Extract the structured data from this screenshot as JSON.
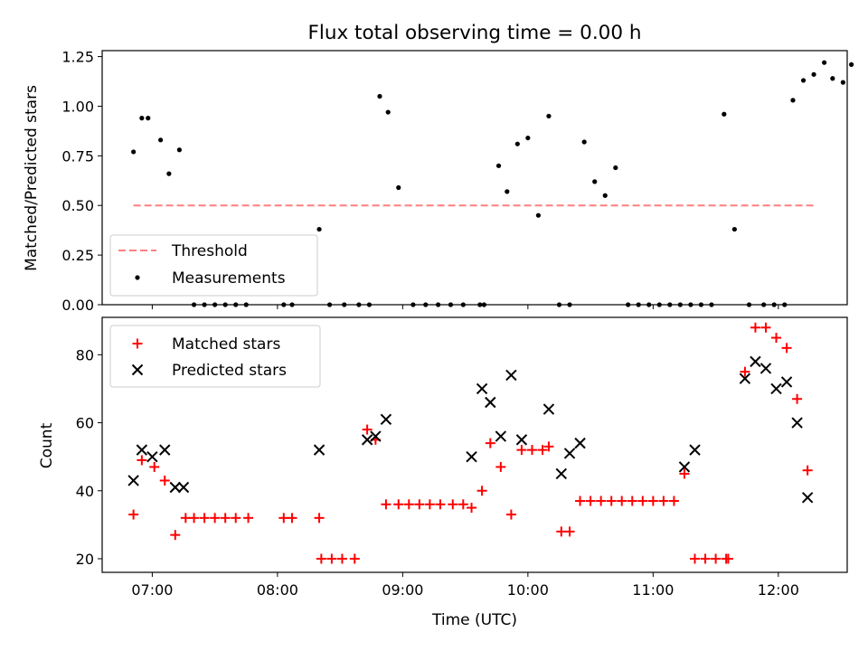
{
  "chart_data": [
    {
      "type": "scatter",
      "title": "Flux total observing time = 0.00 h",
      "ylabel": "Matched/Predicted stars",
      "xlabel": "",
      "xlim": [
        "06:36",
        "12:33"
      ],
      "ylim": [
        0,
        1.28
      ],
      "xticks": [
        "07:00",
        "08:00",
        "09:00",
        "10:00",
        "11:00",
        "12:00"
      ],
      "yticks": [
        "0.00",
        "0.25",
        "0.50",
        "0.75",
        "1.00",
        "1.25"
      ],
      "legend": [
        "Threshold",
        "Measurements"
      ],
      "legend_position": "lower-left",
      "colors": {
        "threshold": "#ff7f7f",
        "measurements": "#000000"
      },
      "threshold": {
        "name": "Threshold",
        "x": [
          "06:51",
          "12:18"
        ],
        "value": 0.5
      },
      "series": [
        {
          "name": "Measurements",
          "points": [
            [
              "06:51",
              0.77
            ],
            [
              "06:55",
              0.94
            ],
            [
              "06:58",
              0.94
            ],
            [
              "07:04",
              0.83
            ],
            [
              "07:08",
              0.66
            ],
            [
              "07:13",
              0.78
            ],
            [
              "07:20",
              0.0
            ],
            [
              "07:25",
              0.0
            ],
            [
              "07:30",
              0.0
            ],
            [
              "07:35",
              0.0
            ],
            [
              "07:40",
              0.0
            ],
            [
              "07:45",
              0.0
            ],
            [
              "08:03",
              0.0
            ],
            [
              "08:07",
              0.0
            ],
            [
              "08:20",
              0.38
            ],
            [
              "08:25",
              0.0
            ],
            [
              "08:32",
              0.0
            ],
            [
              "08:39",
              0.0
            ],
            [
              "08:44",
              0.0
            ],
            [
              "08:49",
              1.05
            ],
            [
              "08:53",
              0.97
            ],
            [
              "08:58",
              0.59
            ],
            [
              "09:05",
              0.0
            ],
            [
              "09:11",
              0.0
            ],
            [
              "09:17",
              0.0
            ],
            [
              "09:23",
              0.0
            ],
            [
              "09:29",
              0.0
            ],
            [
              "09:37",
              0.0
            ],
            [
              "09:39",
              0.0
            ],
            [
              "09:46",
              0.7
            ],
            [
              "09:50",
              0.57
            ],
            [
              "09:55",
              0.81
            ],
            [
              "10:00",
              0.84
            ],
            [
              "10:05",
              0.45
            ],
            [
              "10:10",
              0.95
            ],
            [
              "10:15",
              0.0
            ],
            [
              "10:20",
              0.0
            ],
            [
              "10:27",
              0.82
            ],
            [
              "10:32",
              0.62
            ],
            [
              "10:37",
              0.55
            ],
            [
              "10:42",
              0.69
            ],
            [
              "10:48",
              0.0
            ],
            [
              "10:53",
              0.0
            ],
            [
              "10:58",
              0.0
            ],
            [
              "11:03",
              0.0
            ],
            [
              "11:08",
              0.0
            ],
            [
              "11:13",
              0.0
            ],
            [
              "11:18",
              0.0
            ],
            [
              "11:23",
              0.0
            ],
            [
              "11:28",
              0.0
            ],
            [
              "11:34",
              0.96
            ],
            [
              "11:39",
              0.38
            ],
            [
              "11:46",
              0.0
            ],
            [
              "11:53",
              0.0
            ],
            [
              "11:58",
              0.0
            ],
            [
              "12:03",
              0.0
            ],
            [
              "12:07",
              1.03
            ],
            [
              "12:12",
              1.13
            ],
            [
              "12:17",
              1.16
            ],
            [
              "12:22",
              1.22
            ],
            [
              "12:26",
              1.14
            ],
            [
              "12:31",
              1.12
            ],
            [
              "12:35",
              1.21
            ]
          ]
        }
      ]
    },
    {
      "type": "scatter",
      "title": "",
      "xlabel": "Time (UTC)",
      "ylabel": "Count",
      "xlim": [
        "06:36",
        "12:33"
      ],
      "ylim": [
        16,
        91
      ],
      "xticks": [
        "07:00",
        "08:00",
        "09:00",
        "10:00",
        "11:00",
        "12:00"
      ],
      "yticks": [
        "20",
        "40",
        "60",
        "80"
      ],
      "legend": [
        "Matched stars",
        "Predicted stars"
      ],
      "legend_position": "top-left",
      "colors": {
        "matched": "#ff0000",
        "predicted": "#000000"
      },
      "series": [
        {
          "name": "Matched stars",
          "points": [
            [
              "06:51",
              33
            ],
            [
              "06:55",
              49
            ],
            [
              "07:01",
              47
            ],
            [
              "07:06",
              43
            ],
            [
              "07:11",
              27
            ],
            [
              "07:16",
              32
            ],
            [
              "07:20",
              32
            ],
            [
              "07:25",
              32
            ],
            [
              "07:30",
              32
            ],
            [
              "07:35",
              32
            ],
            [
              "07:40",
              32
            ],
            [
              "07:46",
              32
            ],
            [
              "08:03",
              32
            ],
            [
              "08:07",
              32
            ],
            [
              "08:20",
              32
            ],
            [
              "08:21",
              20
            ],
            [
              "08:26",
              20
            ],
            [
              "08:31",
              20
            ],
            [
              "08:37",
              20
            ],
            [
              "08:43",
              58
            ],
            [
              "08:47",
              55
            ],
            [
              "08:52",
              36
            ],
            [
              "08:58",
              36
            ],
            [
              "09:03",
              36
            ],
            [
              "09:08",
              36
            ],
            [
              "09:13",
              36
            ],
            [
              "09:18",
              36
            ],
            [
              "09:24",
              36
            ],
            [
              "09:29",
              36
            ],
            [
              "09:33",
              35
            ],
            [
              "09:38",
              40
            ],
            [
              "09:42",
              54
            ],
            [
              "09:47",
              47
            ],
            [
              "09:52",
              33
            ],
            [
              "09:57",
              52
            ],
            [
              "10:02",
              52
            ],
            [
              "10:07",
              52
            ],
            [
              "10:10",
              53
            ],
            [
              "10:16",
              28
            ],
            [
              "10:20",
              28
            ],
            [
              "10:25",
              37
            ],
            [
              "10:30",
              37
            ],
            [
              "10:35",
              37
            ],
            [
              "10:40",
              37
            ],
            [
              "10:45",
              37
            ],
            [
              "10:50",
              37
            ],
            [
              "10:55",
              37
            ],
            [
              "11:00",
              37
            ],
            [
              "11:05",
              37
            ],
            [
              "11:10",
              37
            ],
            [
              "11:15",
              45
            ],
            [
              "11:20",
              20
            ],
            [
              "11:25",
              20
            ],
            [
              "11:30",
              20
            ],
            [
              "11:35",
              20
            ],
            [
              "11:36",
              20
            ],
            [
              "11:44",
              75
            ],
            [
              "11:49",
              88
            ],
            [
              "11:54",
              88
            ],
            [
              "11:59",
              85
            ],
            [
              "12:04",
              82
            ],
            [
              "12:09",
              67
            ],
            [
              "12:14",
              46
            ]
          ]
        },
        {
          "name": "Predicted stars",
          "points": [
            [
              "06:51",
              43
            ],
            [
              "06:55",
              52
            ],
            [
              "07:00",
              50
            ],
            [
              "07:06",
              52
            ],
            [
              "07:11",
              41
            ],
            [
              "07:15",
              41
            ],
            [
              "08:20",
              52
            ],
            [
              "08:43",
              55
            ],
            [
              "08:47",
              56
            ],
            [
              "08:52",
              61
            ],
            [
              "09:33",
              50
            ],
            [
              "09:38",
              70
            ],
            [
              "09:42",
              66
            ],
            [
              "09:47",
              56
            ],
            [
              "09:52",
              74
            ],
            [
              "09:57",
              55
            ],
            [
              "10:10",
              64
            ],
            [
              "10:16",
              45
            ],
            [
              "10:20",
              51
            ],
            [
              "10:25",
              54
            ],
            [
              "11:15",
              47
            ],
            [
              "11:20",
              52
            ],
            [
              "11:44",
              73
            ],
            [
              "11:49",
              78
            ],
            [
              "11:54",
              76
            ],
            [
              "11:59",
              70
            ],
            [
              "12:04",
              72
            ],
            [
              "12:09",
              60
            ],
            [
              "12:14",
              38
            ]
          ]
        }
      ]
    }
  ]
}
